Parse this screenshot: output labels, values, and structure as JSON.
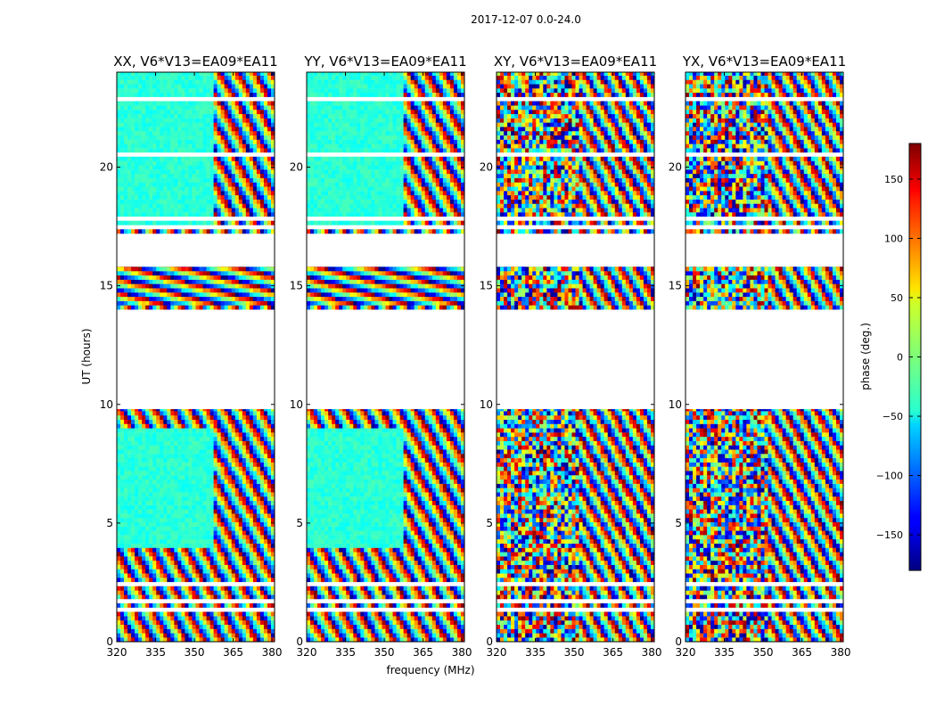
{
  "figure_title": "2017-12-07 0.0-24.0",
  "chart_data": {
    "type": "heatmap",
    "title": "2017-12-07 0.0-24.0",
    "xlabel": "frequency (MHz)",
    "ylabel": "UT (hours)",
    "xlim": [
      320,
      381
    ],
    "ylim": [
      0,
      24
    ],
    "x_ticks": [
      320,
      335,
      350,
      365,
      380
    ],
    "y_ticks": [
      0,
      5,
      10,
      15,
      20
    ],
    "panels": [
      {
        "title": "XX, V6*V13=EA09*EA11",
        "polarization": "XX",
        "style": "parallel"
      },
      {
        "title": "YY, V6*V13=EA09*EA11",
        "polarization": "YY",
        "style": "parallel"
      },
      {
        "title": "XY, V6*V13=EA09*EA11",
        "polarization": "XY",
        "style": "cross"
      },
      {
        "title": "YX, V6*V13=EA09*EA11",
        "polarization": "YX",
        "style": "cross"
      }
    ],
    "data_time_ranges_hours": [
      [
        0,
        9.8
      ],
      [
        14.0,
        15.8
      ],
      [
        17.2,
        24.0
      ]
    ],
    "colorbar": {
      "label": "phase (deg.)",
      "range": [
        -180,
        180
      ],
      "ticks": [
        150,
        100,
        50,
        0,
        -50,
        -100,
        -150
      ],
      "colormap": "jet"
    }
  }
}
